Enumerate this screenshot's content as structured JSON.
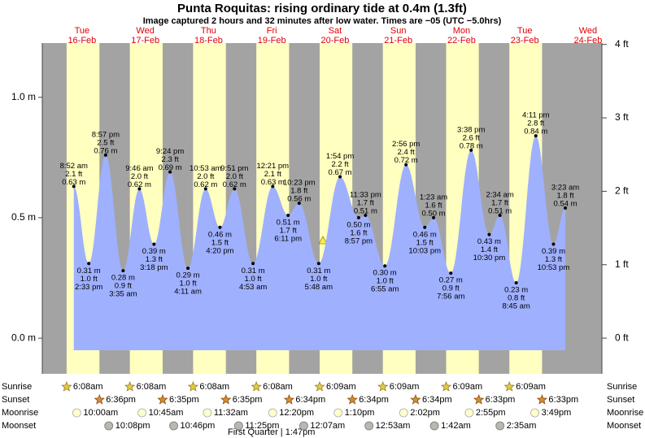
{
  "chart_data": {
    "type": "tide",
    "title": "Punta Roquitas: rising  ordinary tide at 0.4m (1.3ft)",
    "subtitle": "Image captured 2 hours and 32 minutes after low water. Times are −05 (UTC −5.0hrs)",
    "ylim": [
      -0.148,
      1.225
    ],
    "yticks": [
      {
        "value": 0,
        "label": "0.0 m"
      },
      {
        "value": 0.5,
        "label": "0.5 m"
      },
      {
        "value": 1,
        "label": "1.0 m"
      }
    ],
    "y2lim": [
      -0.486,
      4.019
    ],
    "y2ticks": [
      {
        "value": 0,
        "label": "0 ft"
      },
      {
        "value": 1,
        "label": "1 ft"
      },
      {
        "value": 2,
        "label": "2 ft"
      },
      {
        "value": 3,
        "label": "3 ft"
      },
      {
        "value": 4,
        "label": "4 ft"
      }
    ],
    "color": "#9fb0ff",
    "day_color": "#ffffc0",
    "night_color": "#a3a3a3",
    "row_labels": [
      "Sunrise",
      "Sunset",
      "Moonrise",
      "Moonset"
    ],
    "days": [
      {
        "day": "Tue",
        "date": "16-Feb",
        "sunrise": "6:08am",
        "sunset": "6:36pm",
        "moonrise": "10:00am",
        "moonset": "10:08pm",
        "tides": [
          {
            "time": "8:52 am",
            "m": 0.63,
            "m_label": "0.63 m",
            "ft": "2.1 ft"
          },
          {
            "time": "2:33 pm",
            "m": 0.31,
            "m_label": "0.31 m",
            "ft": "1.0 ft"
          },
          {
            "time": "8:57 pm",
            "m": 0.76,
            "m_label": "0.76 m",
            "ft": "2.5 ft"
          }
        ]
      },
      {
        "day": "Wed",
        "date": "17-Feb",
        "sunrise": "6:08am",
        "sunset": "6:35pm",
        "moonrise": "10:45am",
        "moonset": "10:46pm",
        "tides": [
          {
            "time": "3:35 am",
            "m": 0.28,
            "m_label": "0.28 m",
            "ft": "0.9 ft"
          },
          {
            "time": "9:46 am",
            "m": 0.62,
            "m_label": "0.62 m",
            "ft": "2.0 ft"
          },
          {
            "time": "3:18 pm",
            "m": 0.39,
            "m_label": "0.39 m",
            "ft": "1.3 ft"
          },
          {
            "time": "9:24 pm",
            "m": 0.69,
            "m_label": "0.69 m",
            "ft": "2.3 ft"
          }
        ]
      },
      {
        "day": "Thu",
        "date": "18-Feb",
        "sunrise": "6:08am",
        "sunset": "6:35pm",
        "moonrise": "11:32am",
        "moonset": "11:25pm",
        "tides": [
          {
            "time": "4:11 am",
            "m": 0.29,
            "m_label": "0.29 m",
            "ft": "1.0 ft"
          },
          {
            "time": "10:53 am",
            "m": 0.62,
            "m_label": "0.62 m",
            "ft": "2.0 ft"
          },
          {
            "time": "4:20 pm",
            "m": 0.46,
            "m_label": "0.46 m",
            "ft": "1.5 ft"
          },
          {
            "time": "9:51 pm",
            "m": 0.62,
            "m_label": "0.62 m",
            "ft": "2.0 ft"
          }
        ]
      },
      {
        "day": "Fri",
        "date": "19-Feb",
        "sunrise": "6:08am",
        "sunset": "6:34pm",
        "moonrise": "12:20pm",
        "moonset": null,
        "tides": [
          {
            "time": "4:53 am",
            "m": 0.31,
            "m_label": "0.31 m",
            "ft": "1.0 ft"
          },
          {
            "time": "12:21 pm",
            "m": 0.63,
            "m_label": "0.63 m",
            "ft": "2.1 ft"
          },
          {
            "time": "6:11 pm",
            "m": 0.51,
            "m_label": "0.51 m",
            "ft": "1.7 ft"
          },
          {
            "time": "10:23 pm",
            "m": 0.56,
            "m_label": "0.56 m",
            "ft": "1.8 ft"
          }
        ]
      },
      {
        "day": "Sat",
        "date": "20-Feb",
        "sunrise": "6:09am",
        "sunset": "6:34pm",
        "moonrise": "1:10pm",
        "moonset": "12:07am",
        "tides": [
          {
            "time": "5:48 am",
            "m": 0.31,
            "m_label": "0.31 m",
            "ft": "1.0 ft"
          },
          {
            "time": "1:54 pm",
            "m": 0.67,
            "m_label": "0.67 m",
            "ft": "2.2 ft"
          },
          {
            "time": "8:57 pm",
            "m": 0.5,
            "m_label": "0.50 m",
            "ft": "1.6 ft"
          },
          {
            "time": "11:33 pm",
            "m": 0.51,
            "m_label": "0.51 m",
            "ft": "1.7 ft"
          }
        ]
      },
      {
        "day": "Sun",
        "date": "21-Feb",
        "sunrise": "6:09am",
        "sunset": "6:34pm",
        "moonrise": "2:02pm",
        "moonset": "12:53am",
        "tides": [
          {
            "time": "6:55 am",
            "m": 0.3,
            "m_label": "0.30 m",
            "ft": "1.0 ft"
          },
          {
            "time": "2:56 pm",
            "m": 0.72,
            "m_label": "0.72 m",
            "ft": "2.4 ft"
          },
          {
            "time": "10:03 pm",
            "m": 0.46,
            "m_label": "0.46 m",
            "ft": "1.5 ft"
          }
        ]
      },
      {
        "day": "Mon",
        "date": "22-Feb",
        "sunrise": "6:09am",
        "sunset": "6:33pm",
        "moonrise": "2:55pm",
        "moonset": "1:42am",
        "tides": [
          {
            "time": "1:23 am",
            "m": 0.5,
            "m_label": "0.50 m",
            "ft": "1.6 ft"
          },
          {
            "time": "7:56 am",
            "m": 0.27,
            "m_label": "0.27 m",
            "ft": "0.9 ft"
          },
          {
            "time": "3:38 pm",
            "m": 0.78,
            "m_label": "0.78 m",
            "ft": "2.6 ft"
          },
          {
            "time": "10:30 pm",
            "m": 0.43,
            "m_label": "0.43 m",
            "ft": "1.4 ft"
          }
        ]
      },
      {
        "day": "Tue",
        "date": "23-Feb",
        "sunrise": "6:09am",
        "sunset": "6:33pm",
        "moonrise": "3:49pm",
        "moonset": "2:35am",
        "tides": [
          {
            "time": "2:34 am",
            "m": 0.51,
            "m_label": "0.51 m",
            "ft": "1.7 ft"
          },
          {
            "time": "8:45 am",
            "m": 0.23,
            "m_label": "0.23 m",
            "ft": "0.8 ft"
          },
          {
            "time": "4:11 pm",
            "m": 0.84,
            "m_label": "0.84 m",
            "ft": "2.8 ft"
          },
          {
            "time": "10:53 pm",
            "m": 0.39,
            "m_label": "0.39 m",
            "ft": "1.3 ft"
          }
        ]
      },
      {
        "day": "Wed",
        "date": "24-Feb",
        "sunrise": null,
        "sunset": null,
        "moonrise": null,
        "moonset": null,
        "tides": [
          {
            "time": "3:23 am",
            "m": 0.54,
            "m_label": "0.54 m",
            "ft": "1.8 ft"
          }
        ]
      }
    ],
    "moon_phase": "First Quarter | 1:47pm"
  }
}
